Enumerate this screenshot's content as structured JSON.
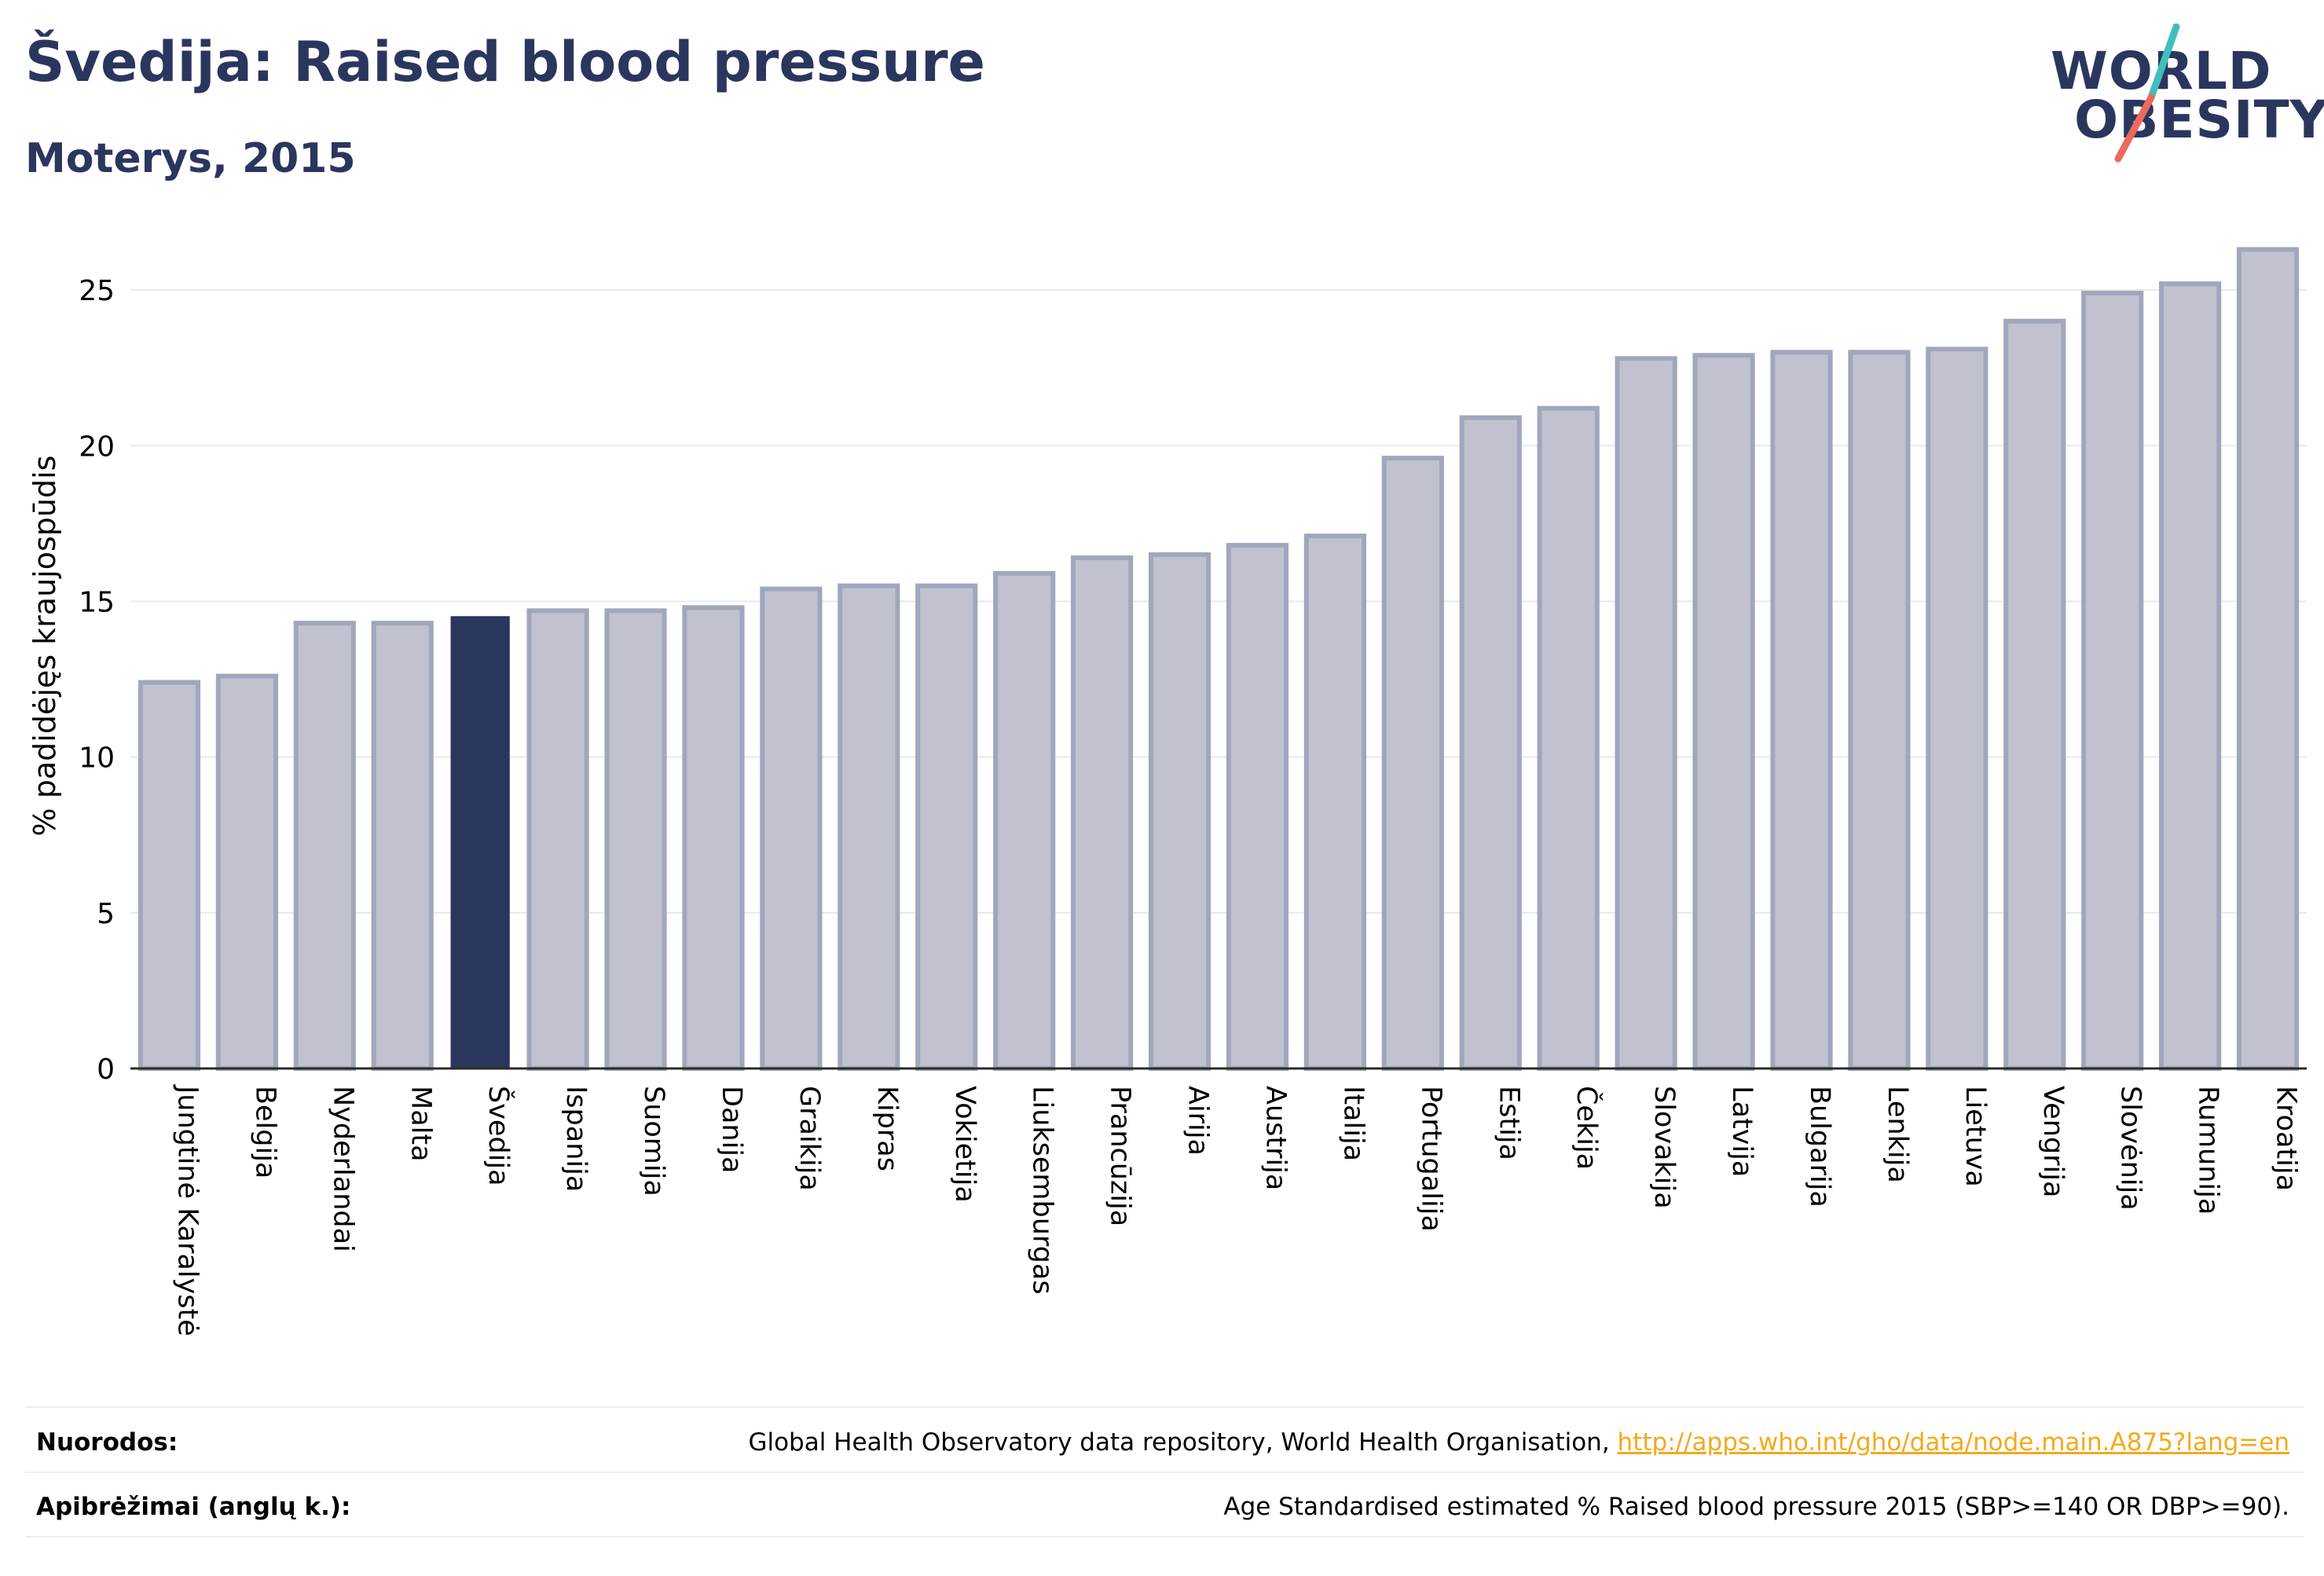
{
  "header": {
    "title": "Švedija: Raised blood pressure",
    "subtitle": "Moterys, 2015"
  },
  "logo": {
    "line1": "WORLD",
    "line2": "OBESITY",
    "accent_colors": [
      "#3fbfbc",
      "#ec6a5c"
    ]
  },
  "chart_data": {
    "type": "bar",
    "title": "Švedija: Raised blood pressure",
    "subtitle": "Moterys, 2015",
    "ylabel": "% padidėjęs kraujospūdis",
    "xlabel": "",
    "ylim": [
      0,
      27.5
    ],
    "yticks": [
      0,
      5,
      10,
      15,
      20,
      25
    ],
    "grid": true,
    "categories": [
      "Jungtinė Karalystė",
      "Belgija",
      "Nyderlandai",
      "Malta",
      "Švedija",
      "Ispanija",
      "Suomija",
      "Danija",
      "Graikija",
      "Kipras",
      "Vokietija",
      "Liuksemburgas",
      "Prancūzija",
      "Airija",
      "Austrija",
      "Italija",
      "Portugalija",
      "Estija",
      "Čekija",
      "Slovakija",
      "Latvija",
      "Bulgarija",
      "Lenkija",
      "Lietuva",
      "Vengrija",
      "Slovėnija",
      "Rumunija",
      "Kroatija"
    ],
    "values": [
      12.4,
      12.6,
      14.3,
      14.3,
      14.5,
      14.7,
      14.7,
      14.8,
      15.4,
      15.5,
      15.5,
      15.9,
      16.4,
      16.5,
      16.8,
      17.1,
      19.6,
      20.9,
      21.2,
      22.8,
      22.9,
      23.0,
      23.0,
      23.1,
      24.0,
      24.9,
      25.2,
      26.3
    ],
    "highlight": "Švedija",
    "colors": {
      "bar_fill": "#c0c3cf",
      "bar_stroke": "#a1a7bb",
      "highlight": "#2b365f",
      "grid": "#e8e9ef",
      "axis": "#2b2b2b"
    }
  },
  "footer": {
    "sources_label": "Nuorodos:",
    "sources_text": "Global Health Observatory data repository, World Health Organisation, ",
    "sources_link": "http://apps.who.int/gho/data/node.main.A875?lang=en",
    "definitions_label": "Apibrėžimai (anglų k.):",
    "definitions_text": "Age Standardised estimated % Raised blood pressure 2015 (SBP>=140 OR DBP>=90)."
  }
}
